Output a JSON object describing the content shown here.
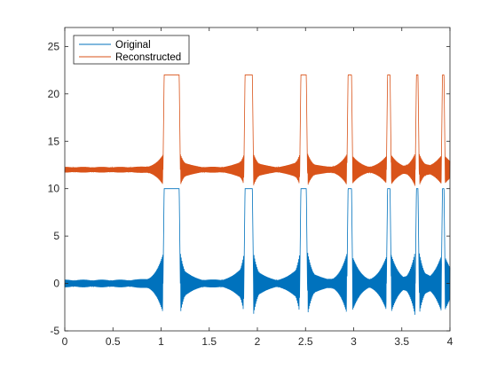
{
  "chart_data": {
    "type": "line",
    "title": "",
    "xlabel": "",
    "ylabel": "",
    "xlim": [
      0,
      4
    ],
    "ylim": [
      -5,
      27
    ],
    "xticks": [
      0,
      0.5,
      1,
      1.5,
      2,
      2.5,
      3,
      3.5,
      4
    ],
    "xtick_labels": [
      "0",
      "0.5",
      "1",
      "1.5",
      "2",
      "2.5",
      "3",
      "3.5",
      "4"
    ],
    "yticks": [
      -5,
      0,
      5,
      10,
      15,
      20,
      25
    ],
    "ytick_labels": [
      "-5",
      "0",
      "5",
      "10",
      "15",
      "20",
      "25"
    ],
    "grid": false,
    "legend_position": "top-left",
    "pulse_intervals": [
      [
        1.02,
        1.2
      ],
      [
        1.86,
        1.96
      ],
      [
        2.44,
        2.52
      ],
      [
        2.93,
        2.99
      ],
      [
        3.34,
        3.39
      ],
      [
        3.64,
        3.68
      ],
      [
        3.91,
        3.95
      ]
    ],
    "series": [
      {
        "name": "Original",
        "color": "#0072BD",
        "baseline": 0,
        "pulse_level": 10,
        "oscillation_amplitude_near_pulse": 3.5,
        "oscillation_amplitude_far": 0.4
      },
      {
        "name": "Reconstructed",
        "color": "#D95319",
        "baseline": 12,
        "pulse_level": 22,
        "oscillation_amplitude_near_pulse": 1.8,
        "oscillation_amplitude_far": 0.3
      }
    ]
  }
}
